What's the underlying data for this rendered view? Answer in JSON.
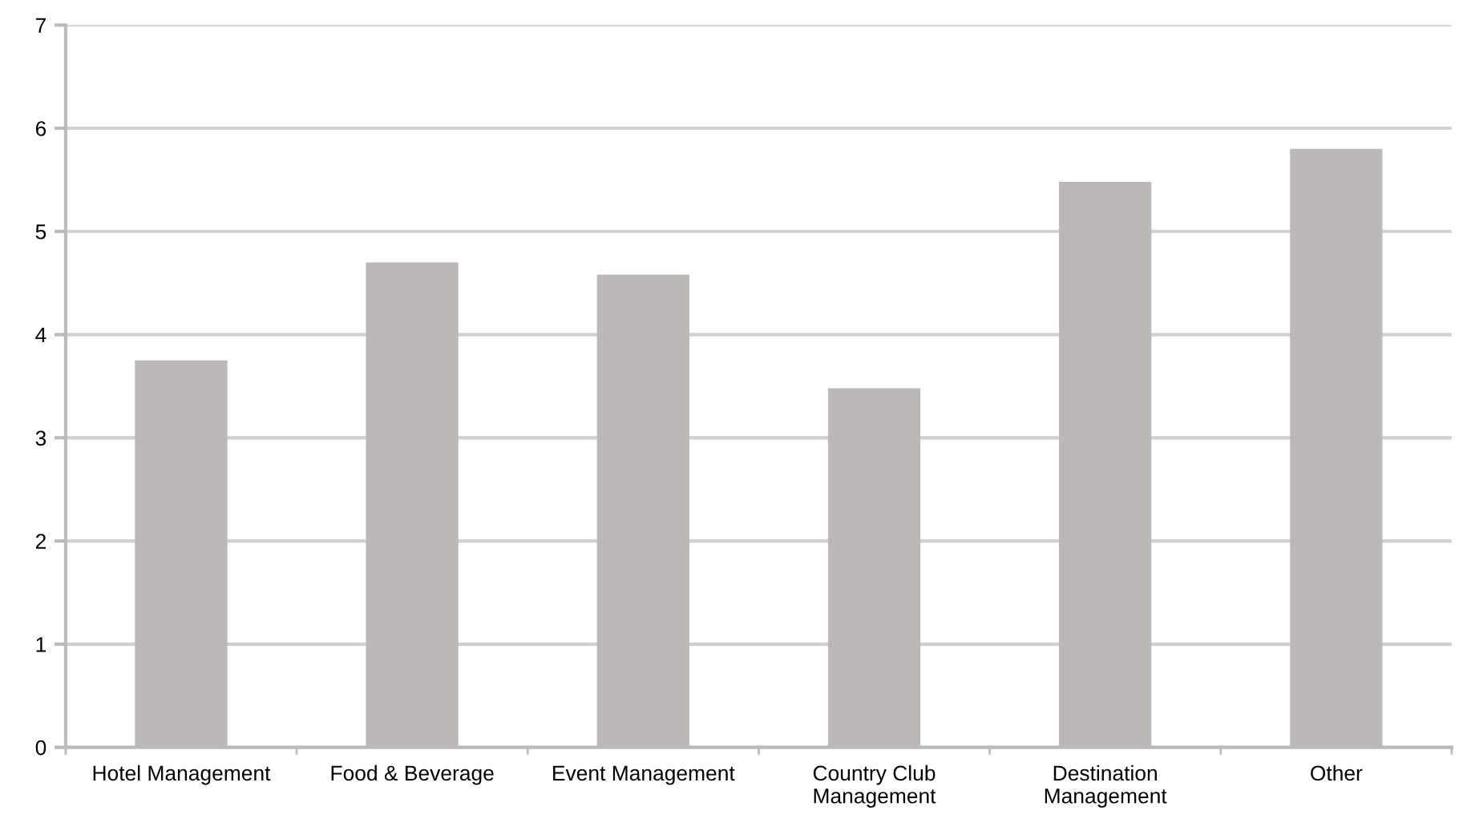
{
  "chart_data": {
    "type": "bar",
    "categories": [
      "Hotel Management",
      "Food & Beverage",
      "Event Management",
      "Country Club\nManagement",
      "Destination\nManagement",
      "Other"
    ],
    "values": [
      3.75,
      4.7,
      4.58,
      3.48,
      5.48,
      5.8
    ],
    "color": "#bbb8b7",
    "ylim": [
      0,
      7
    ],
    "yticks": [
      0,
      1,
      2,
      3,
      4,
      5,
      6,
      7
    ],
    "grid": "y"
  }
}
